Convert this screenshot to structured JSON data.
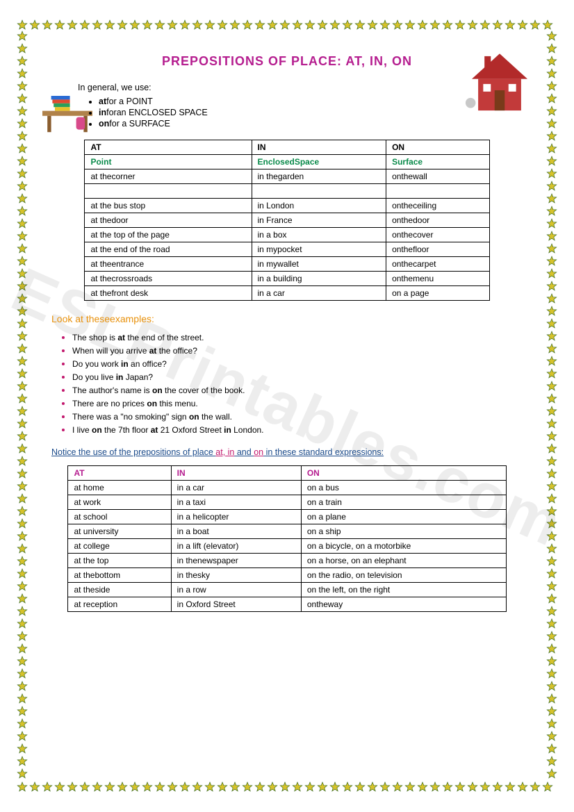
{
  "title": "PREPOSITIONS OF PLACE: AT, IN, ON",
  "intro_lead": "In general, we use:",
  "intro_items": [
    {
      "prep": "at",
      "desc": "for a POINT"
    },
    {
      "prep": "in",
      "desc": "foran ENCLOSED SPACE"
    },
    {
      "prep": "on",
      "desc": "for a SURFACE"
    }
  ],
  "table1": {
    "head_top": [
      "AT",
      "IN",
      "ON"
    ],
    "head_sub": [
      "Point",
      "EnclosedSpace",
      "Surface"
    ],
    "rows": [
      [
        "at thecorner",
        "in thegarden",
        "onthewall"
      ],
      [
        "",
        "",
        ""
      ],
      [
        "at the bus stop",
        "in London",
        "ontheceiling"
      ],
      [
        "at thedoor",
        "in France",
        "onthedoor"
      ],
      [
        "at the top of the page",
        "in a box",
        "onthecover"
      ],
      [
        "at the end of the road",
        "in mypocket",
        "onthefloor"
      ],
      [
        "at theentrance",
        "in mywallet",
        "onthecarpet"
      ],
      [
        "at thecrossroads",
        "in a building",
        "onthemenu"
      ],
      [
        "at thefront desk",
        "in a car",
        "on a page"
      ]
    ]
  },
  "examples_heading": "Look at theseexamples:",
  "examples_html": [
    "The shop is <b>at</b> the end of the street.",
    "When will you arrive <b>at</b> the office?",
    "Do you work <b>in</b> an office?",
    "Do you live <b>in</b> Japan?",
    "The author's name is <b>on</b> the cover of the book.",
    "There are no prices <b>on</b> this menu.",
    "There was a \"no smoking\" sign <b>on</b> the wall.",
    "I live <b>on</b> the 7th floor <b>at</b> 21 Oxford Street <b>in</b> London."
  ],
  "notice_pre": "Notice the use of the prepositions of place ",
  "notice_mid": "at, in",
  "notice_mid2": " and ",
  "notice_hot2": "on",
  "notice_post": " in these standard expressions:",
  "table2": {
    "head": [
      "AT",
      "IN",
      "ON"
    ],
    "rows": [
      [
        "at home",
        "in a car",
        "on a bus"
      ],
      [
        "at work",
        "in a taxi",
        "on a train"
      ],
      [
        "at school",
        "in a helicopter",
        "on a plane"
      ],
      [
        "at university",
        "in a boat",
        "on a ship"
      ],
      [
        "at college",
        "in a lift (elevator)",
        "on a bicycle, on a motorbike"
      ],
      [
        "at the top",
        "in thenewspaper",
        "on a horse, on an elephant"
      ],
      [
        "at thebottom",
        "in thesky",
        "on the radio, on television"
      ],
      [
        "at theside",
        "in a row",
        "on the left, on the right"
      ],
      [
        "at reception",
        "in Oxford Street",
        "ontheway"
      ]
    ]
  },
  "watermark": "ESLPrintables.com",
  "colors": {
    "star_fill": "#d6c22a",
    "star_stroke": "#3a6b1f",
    "title": "#b51d8f",
    "green": "#0a8a4a",
    "orange": "#e8910c",
    "pink": "#b51d8f",
    "blue": "#1a4a8a"
  }
}
